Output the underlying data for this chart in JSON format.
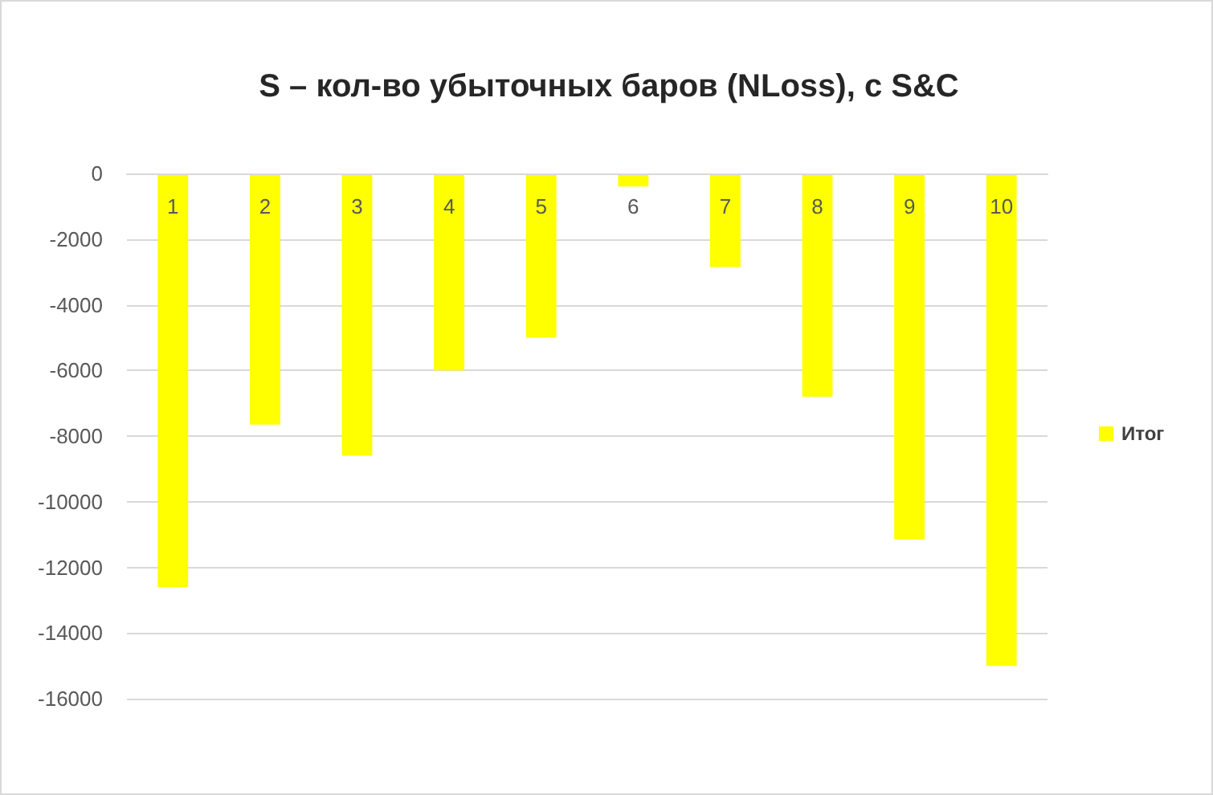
{
  "chart_data": {
    "type": "bar",
    "title": "S – кол-во убыточных баров (NLoss), с S&C",
    "categories": [
      "1",
      "2",
      "3",
      "4",
      "5",
      "6",
      "7",
      "8",
      "9",
      "10"
    ],
    "series": [
      {
        "name": "Итог",
        "color": "#ffff00",
        "values": [
          -12600,
          -7650,
          -8600,
          -6000,
          -5000,
          -400,
          -2850,
          -6800,
          -11150,
          -15000
        ]
      }
    ],
    "ylim": [
      -16000,
      0
    ],
    "yticks": [
      0,
      -2000,
      -4000,
      -6000,
      -8000,
      -10000,
      -12000,
      -14000,
      -16000
    ],
    "grid": "y",
    "legend": "right"
  }
}
